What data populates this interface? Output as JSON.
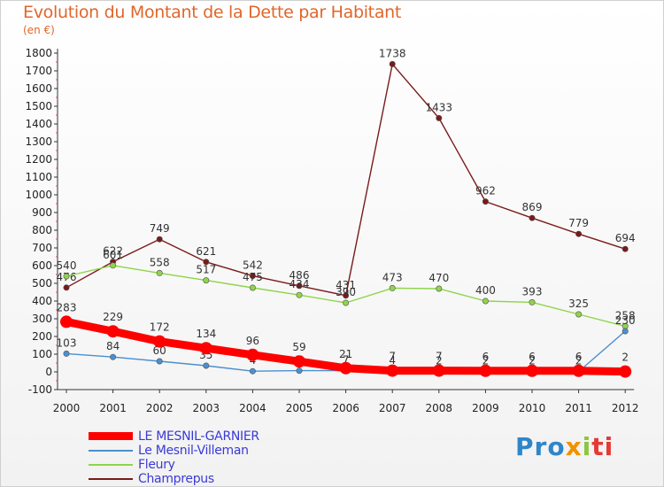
{
  "chart_data": {
    "type": "line",
    "title": "Evolution du Montant de la Dette par Habitant",
    "subtitle": "(en €)",
    "x": [
      "2000",
      "2001",
      "2002",
      "2003",
      "2004",
      "2005",
      "2006",
      "2007",
      "2008",
      "2009",
      "2010",
      "2011",
      "2012"
    ],
    "ylim": [
      -100,
      1800
    ],
    "yticks": [
      -100,
      0,
      100,
      200,
      300,
      400,
      500,
      600,
      700,
      800,
      900,
      1000,
      1100,
      1200,
      1300,
      1400,
      1500,
      1600,
      1700,
      1800
    ],
    "grid": false,
    "legend_position": "bottom-left",
    "series": [
      {
        "name": "LE MESNIL-GARNIER",
        "color": "#ff0000",
        "values": [
          283,
          229,
          172,
          134,
          96,
          59,
          21,
          7,
          7,
          6,
          6,
          6,
          2
        ]
      },
      {
        "name": "Le Mesnil-Villeman",
        "color": "#4a90d0",
        "values": [
          103,
          84,
          60,
          35,
          4,
          7,
          7,
          4,
          2,
          2,
          2,
          2,
          230
        ]
      },
      {
        "name": "Fleury",
        "color": "#8fd44a",
        "values": [
          540,
          601,
          558,
          517,
          475,
          434,
          390,
          473,
          470,
          400,
          393,
          325,
          258
        ]
      },
      {
        "name": "Champrepus",
        "color": "#7a1a1a",
        "values": [
          476,
          622,
          749,
          621,
          542,
          486,
          431,
          1738,
          1433,
          962,
          869,
          779,
          694
        ]
      }
    ]
  },
  "brand": {
    "p1": "Pro",
    "p2": "x",
    "p3": "i",
    "p4": "ti"
  }
}
